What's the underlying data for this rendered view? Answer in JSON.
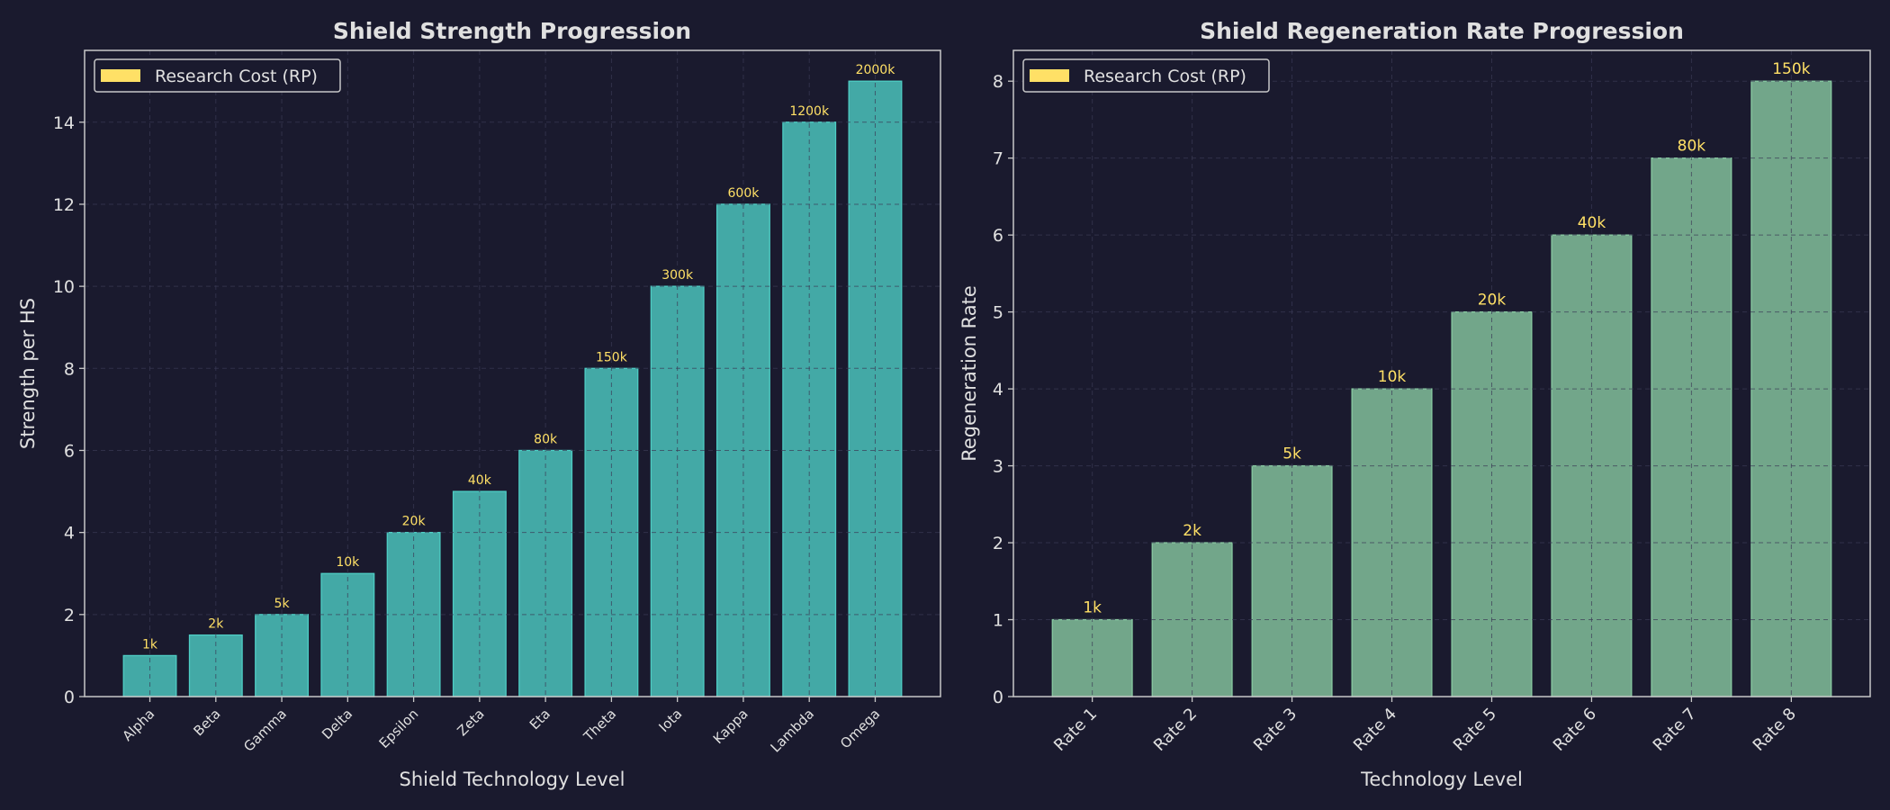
{
  "colors": {
    "background": "#1a1a2e",
    "text": "#e0e0e0",
    "cost_label": "#ffe066",
    "axes_edge": "#c8c8c8",
    "grid": "#3a3a55"
  },
  "chart_data": [
    {
      "type": "bar",
      "title": "Shield Strength Progression",
      "xlabel": "Shield Technology Level",
      "ylabel": "Strength per HS",
      "categories": [
        "Alpha",
        "Beta",
        "Gamma",
        "Delta",
        "Epsilon",
        "Zeta",
        "Eta",
        "Theta",
        "Iota",
        "Kappa",
        "Lambda",
        "Omega"
      ],
      "values": [
        1,
        1.5,
        2,
        3,
        4,
        5,
        6,
        8,
        10,
        12,
        14,
        15
      ],
      "bar_labels": [
        "1k",
        "2k",
        "5k",
        "10k",
        "20k",
        "40k",
        "80k",
        "150k",
        "300k",
        "600k",
        "1200k",
        "2000k"
      ],
      "yticks": [
        0,
        2,
        4,
        6,
        8,
        10,
        12,
        14
      ],
      "ylim": [
        0,
        15.75
      ],
      "bar_color": "#4ecdc4",
      "legend": {
        "label": "Research Cost (RP)",
        "color": "#ffe066",
        "placement": "top-left"
      },
      "grid": true
    },
    {
      "type": "bar",
      "title": "Shield Regeneration Rate Progression",
      "xlabel": "Technology Level",
      "ylabel": "Regeneration Rate",
      "categories": [
        "Rate 1",
        "Rate 2",
        "Rate 3",
        "Rate 4",
        "Rate 5",
        "Rate 6",
        "Rate 7",
        "Rate 8"
      ],
      "values": [
        1,
        2,
        3,
        4,
        5,
        6,
        7,
        8
      ],
      "bar_labels": [
        "1k",
        "2k",
        "5k",
        "10k",
        "20k",
        "40k",
        "80k",
        "150k"
      ],
      "yticks": [
        0,
        1,
        2,
        3,
        4,
        5,
        6,
        7,
        8
      ],
      "ylim": [
        0,
        8.4
      ],
      "bar_color": "#88c9a1",
      "legend": {
        "label": "Research Cost (RP)",
        "color": "#ffe066",
        "placement": "top-left"
      },
      "grid": true
    }
  ]
}
